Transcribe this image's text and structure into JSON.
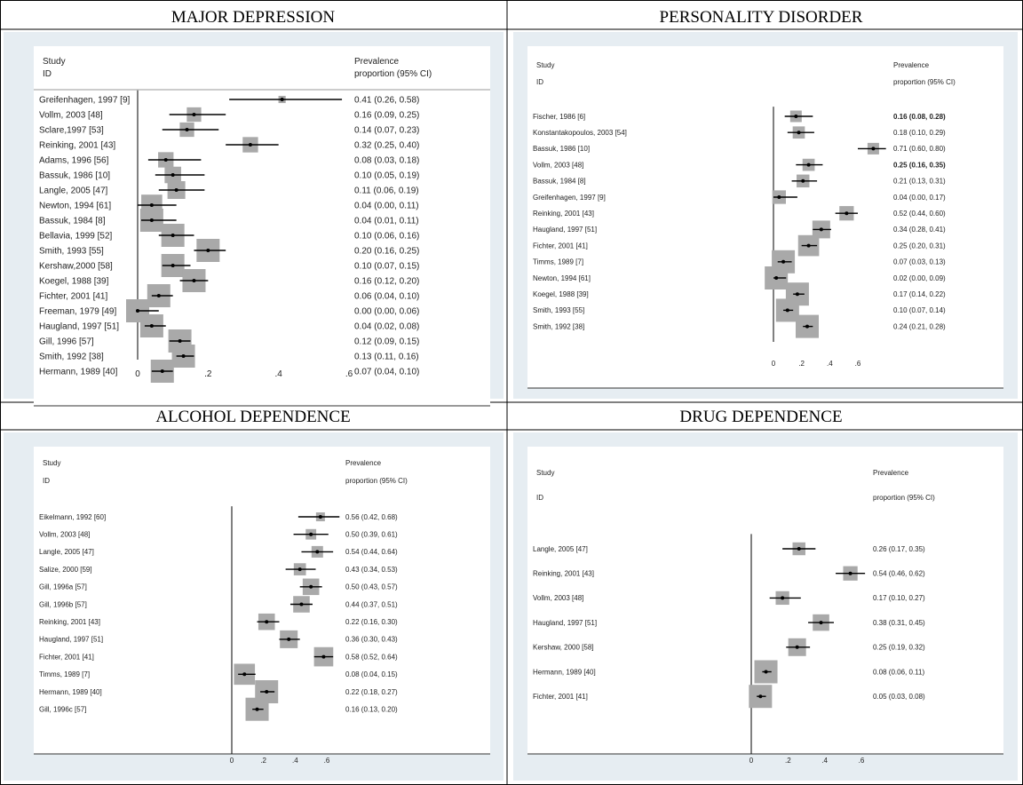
{
  "chart_data": [
    {
      "type": "forest",
      "title": "MAJOR DEPRESSION",
      "col_study": [
        "Study",
        "ID"
      ],
      "col_est": [
        "Prevalence",
        "proportion (95% CI)"
      ],
      "xticks": [
        "0",
        ".2",
        ".4",
        ".6"
      ],
      "xlim": [
        0,
        0.6
      ],
      "rows": [
        {
          "label": "Greifenhagen, 1997 [9]",
          "est": 0.41,
          "lo": 0.26,
          "hi": 0.58,
          "text": "0.41 (0.26, 0.58)"
        },
        {
          "label": "Vollm, 2003 [48]",
          "est": 0.16,
          "lo": 0.09,
          "hi": 0.25,
          "text": "0.16 (0.09, 0.25)"
        },
        {
          "label": "Sclare,1997 [53]",
          "est": 0.14,
          "lo": 0.07,
          "hi": 0.23,
          "text": "0.14 (0.07, 0.23)"
        },
        {
          "label": "Reinking, 2001 [43]",
          "est": 0.32,
          "lo": 0.25,
          "hi": 0.4,
          "text": "0.32 (0.25, 0.40)"
        },
        {
          "label": "Adams, 1996 [56]",
          "est": 0.08,
          "lo": 0.03,
          "hi": 0.18,
          "text": "0.08 (0.03, 0.18)"
        },
        {
          "label": "Bassuk, 1986 [10]",
          "est": 0.1,
          "lo": 0.05,
          "hi": 0.19,
          "text": "0.10 (0.05, 0.19)"
        },
        {
          "label": "Langle, 2005 [47]",
          "est": 0.11,
          "lo": 0.06,
          "hi": 0.19,
          "text": "0.11 (0.06, 0.19)"
        },
        {
          "label": "Newton, 1994 [61]",
          "est": 0.04,
          "lo": 0.0,
          "hi": 0.11,
          "text": "0.04 (0.00, 0.11)"
        },
        {
          "label": "Bassuk, 1984 [8]",
          "est": 0.04,
          "lo": 0.01,
          "hi": 0.11,
          "text": "0.04 (0.01, 0.11)"
        },
        {
          "label": "Bellavia, 1999 [52]",
          "est": 0.1,
          "lo": 0.06,
          "hi": 0.16,
          "text": "0.10 (0.06, 0.16)"
        },
        {
          "label": "Smith, 1993 [55]",
          "est": 0.2,
          "lo": 0.16,
          "hi": 0.25,
          "text": "0.20 (0.16, 0.25)"
        },
        {
          "label": "Kershaw,‪2000 [58]",
          "est": 0.1,
          "lo": 0.07,
          "hi": 0.15,
          "text": "0.10 (0.07, 0.15)"
        },
        {
          "label": "Koegel, 1988 [39]",
          "est": 0.16,
          "lo": 0.12,
          "hi": 0.2,
          "text": "0.16 (0.12, 0.20)"
        },
        {
          "label": "Fichter, 2001 [41]",
          "est": 0.06,
          "lo": 0.04,
          "hi": 0.1,
          "text": "0.06 (0.04, 0.10)"
        },
        {
          "label": "Freeman, 1979 [49]",
          "est": 0.0,
          "lo": 0.0,
          "hi": 0.06,
          "text": "0.00 (0.00, 0.06)"
        },
        {
          "label": "Haugland, 1997 [51]",
          "est": 0.04,
          "lo": 0.02,
          "hi": 0.08,
          "text": "0.04 (0.02, 0.08)"
        },
        {
          "label": "Gill, 1996 [57]",
          "est": 0.12,
          "lo": 0.09,
          "hi": 0.15,
          "text": "0.12 (0.09, 0.15)"
        },
        {
          "label": "Smith, 1992 [38]",
          "est": 0.13,
          "lo": 0.11,
          "hi": 0.16,
          "text": "0.13 (0.11, 0.16)"
        },
        {
          "label": "Hermann, 1989 [40]",
          "est": 0.07,
          "lo": 0.04,
          "hi": 0.1,
          "text": "0.07 (0.04, 0.10)"
        }
      ]
    },
    {
      "type": "forest",
      "title": "PERSONALITY DISORDER",
      "col_study": [
        "Study",
        "ID"
      ],
      "col_est": [
        "Prevalence",
        "proportion (95% CI)"
      ],
      "xticks": [
        "0",
        ".2",
        ".4",
        ".6"
      ],
      "xlim": [
        0,
        0.6
      ],
      "rows": [
        {
          "label": "Fischer, 1986 [6]",
          "est": 0.16,
          "lo": 0.08,
          "hi": 0.28,
          "text": "0.16 (0.08, 0.28)",
          "bold": true
        },
        {
          "label": "Konstantakopoulos, 2003 [54]",
          "est": 0.18,
          "lo": 0.1,
          "hi": 0.29,
          "text": "0.18 (0.10, 0.29)"
        },
        {
          "label": "Bassuk, 1986 [10]",
          "est": 0.71,
          "lo": 0.6,
          "hi": 0.8,
          "text": "0.71 (0.60, 0.80)"
        },
        {
          "label": "Vollm, 2003 [48]",
          "est": 0.25,
          "lo": 0.16,
          "hi": 0.35,
          "text": "0.25 (0.16, 0.35)",
          "bold": true
        },
        {
          "label": "Bassuk, 1984 [8]",
          "est": 0.21,
          "lo": 0.13,
          "hi": 0.31,
          "text": "0.21 (0.13, 0.31)"
        },
        {
          "label": "Greifenhagen, 1997 [9]",
          "est": 0.04,
          "lo": 0.0,
          "hi": 0.17,
          "text": "0.04 (0.00, 0.17)"
        },
        {
          "label": "Reinking, 2001 [43]",
          "est": 0.52,
          "lo": 0.44,
          "hi": 0.6,
          "text": "0.52 (0.44, 0.60)"
        },
        {
          "label": "Haugland, 1997 [51]",
          "est": 0.34,
          "lo": 0.28,
          "hi": 0.41,
          "text": "0.34 (0.28, 0.41)"
        },
        {
          "label": "Fichter, 2001 [41]",
          "est": 0.25,
          "lo": 0.2,
          "hi": 0.31,
          "text": "0.25 (0.20, 0.31)"
        },
        {
          "label": "Timms, 1989 [7]",
          "est": 0.07,
          "lo": 0.03,
          "hi": 0.13,
          "text": "0.07 (0.03, 0.13)"
        },
        {
          "label": "Newton, 1994 [61]",
          "est": 0.02,
          "lo": 0.0,
          "hi": 0.09,
          "text": "0.02 (0.00, 0.09)"
        },
        {
          "label": "Koegel, 1988 [39]",
          "est": 0.17,
          "lo": 0.14,
          "hi": 0.22,
          "text": "0.17 (0.14, 0.22)"
        },
        {
          "label": "Smith, 1993 [55]",
          "est": 0.1,
          "lo": 0.07,
          "hi": 0.14,
          "text": "0.10 (0.07, 0.14)"
        },
        {
          "label": "Smith, 1992 [38]",
          "est": 0.24,
          "lo": 0.21,
          "hi": 0.28,
          "text": "0.24 (0.21, 0.28)"
        }
      ]
    },
    {
      "type": "forest",
      "title": "ALCOHOL DEPENDENCE",
      "col_study": [
        "Study",
        "ID"
      ],
      "col_est": [
        "Prevalence",
        "proportion (95% CI)"
      ],
      "xticks": [
        "0",
        ".2",
        ".4",
        ".6"
      ],
      "xlim": [
        0,
        0.6
      ],
      "rows": [
        {
          "label": "Eikelmann, 1992 [60]",
          "est": 0.56,
          "lo": 0.42,
          "hi": 0.68,
          "text": "0.56 (0.42, 0.68)"
        },
        {
          "label": "Vollm, 2003 [48]",
          "est": 0.5,
          "lo": 0.39,
          "hi": 0.61,
          "text": "0.50 (0.39, 0.61)"
        },
        {
          "label": "Langle, 2005 [47]",
          "est": 0.54,
          "lo": 0.44,
          "hi": 0.64,
          "text": "0.54 (0.44, 0.64)"
        },
        {
          "label": "Salize, 2000 [59]",
          "est": 0.43,
          "lo": 0.34,
          "hi": 0.53,
          "text": "0.43 (0.34, 0.53)"
        },
        {
          "label": "Gill, 1996a [57]",
          "est": 0.5,
          "lo": 0.43,
          "hi": 0.57,
          "text": "0.50 (0.43, 0.57)"
        },
        {
          "label": "Gill, 1996b [57]",
          "est": 0.44,
          "lo": 0.37,
          "hi": 0.51,
          "text": "0.44 (0.37, 0.51)"
        },
        {
          "label": "Reinking, 2001 [43]",
          "est": 0.22,
          "lo": 0.16,
          "hi": 0.3,
          "text": "0.22 (0.16, 0.30)"
        },
        {
          "label": "Haugland, 1997 [51]",
          "est": 0.36,
          "lo": 0.3,
          "hi": 0.43,
          "text": "0.36 (0.30, 0.43)"
        },
        {
          "label": "Fichter, 2001 [41]",
          "est": 0.58,
          "lo": 0.52,
          "hi": 0.64,
          "text": "0.58 (0.52, 0.64)"
        },
        {
          "label": "Timms, 1989 [7]",
          "est": 0.08,
          "lo": 0.04,
          "hi": 0.15,
          "text": "0.08 (0.04, 0.15)"
        },
        {
          "label": "Hermann, 1989 [40]",
          "est": 0.22,
          "lo": 0.18,
          "hi": 0.27,
          "text": "0.22 (0.18, 0.27)"
        },
        {
          "label": "Gill, 1996c [57]",
          "est": 0.16,
          "lo": 0.13,
          "hi": 0.2,
          "text": "0.16 (0.13, 0.20)"
        }
      ]
    },
    {
      "type": "forest",
      "title": "DRUG DEPENDENCE",
      "col_study": [
        "Study",
        "ID"
      ],
      "col_est": [
        "Prevalence",
        "proportion (95% CI)"
      ],
      "xticks": [
        "0",
        ".2",
        ".4",
        ".6"
      ],
      "xlim": [
        0,
        0.6
      ],
      "rows": [
        {
          "label": "Langle, 2005 [47]",
          "est": 0.26,
          "lo": 0.17,
          "hi": 0.35,
          "text": "0.26 (0.17, 0.35)"
        },
        {
          "label": "Reinking, 2001 [43]",
          "est": 0.54,
          "lo": 0.46,
          "hi": 0.62,
          "text": "0.54 (0.46, 0.62)"
        },
        {
          "label": "Vollm, 2003 [48]",
          "est": 0.17,
          "lo": 0.1,
          "hi": 0.27,
          "text": "0.17 (0.10, 0.27)"
        },
        {
          "label": "Haugland, 1997 [51]",
          "est": 0.38,
          "lo": 0.31,
          "hi": 0.45,
          "text": "0.38 (0.31, 0.45)"
        },
        {
          "label": "Kershaw, 2000 [58]",
          "est": 0.25,
          "lo": 0.19,
          "hi": 0.32,
          "text": "0.25 (0.19, 0.32)"
        },
        {
          "label": "Hermann, 1989 [40]",
          "est": 0.08,
          "lo": 0.06,
          "hi": 0.11,
          "text": "0.08 (0.06, 0.11)"
        },
        {
          "label": "Fichter, 2001 [41]",
          "est": 0.05,
          "lo": 0.03,
          "hi": 0.08,
          "text": "0.05 (0.03, 0.08)"
        }
      ]
    }
  ]
}
